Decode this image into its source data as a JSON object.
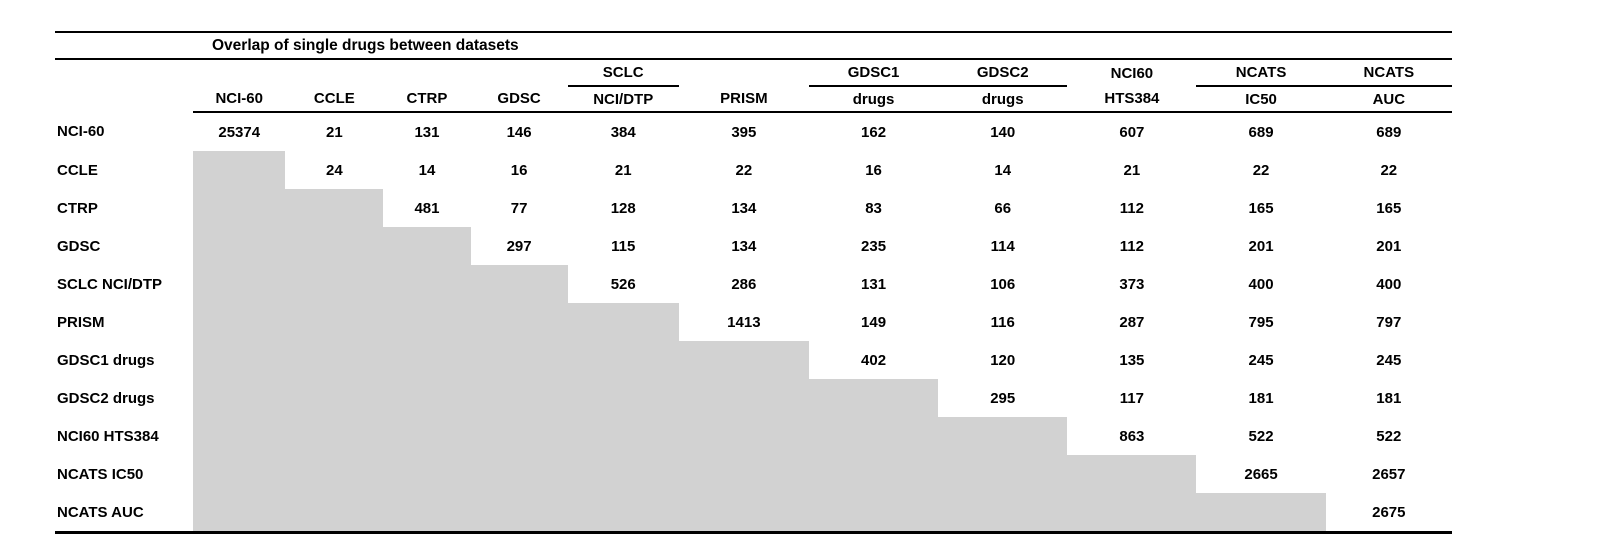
{
  "title": "Overlap of single drugs between datasets",
  "colors": {
    "shaded_cell": "#d2d2d2",
    "rule": "#000000",
    "background": "#ffffff"
  },
  "columns": [
    {
      "header_top": "",
      "header_bottom": "NCI-60",
      "underline": false
    },
    {
      "header_top": "",
      "header_bottom": "CCLE",
      "underline": false
    },
    {
      "header_top": "",
      "header_bottom": "CTRP",
      "underline": false
    },
    {
      "header_top": "",
      "header_bottom": "GDSC",
      "underline": false
    },
    {
      "header_top": "SCLC",
      "header_bottom": "NCI/DTP",
      "underline": true
    },
    {
      "header_top": "",
      "header_bottom": "PRISM",
      "underline": false
    },
    {
      "header_top": "GDSC1",
      "header_bottom": "drugs",
      "underline": true
    },
    {
      "header_top": "GDSC2",
      "header_bottom": "drugs",
      "underline": true
    },
    {
      "header_top": "NCI60",
      "header_bottom": "HTS384",
      "underline": false
    },
    {
      "header_top": "NCATS",
      "header_bottom": "IC50",
      "underline": true
    },
    {
      "header_top": "NCATS",
      "header_bottom": "AUC",
      "underline": true
    }
  ],
  "rows": [
    {
      "label": "NCI-60",
      "cells": [
        "25374",
        "21",
        "131",
        "146",
        "384",
        "395",
        "162",
        "140",
        "607",
        "689",
        "689"
      ]
    },
    {
      "label": "CCLE",
      "cells": [
        null,
        "24",
        "14",
        "16",
        "21",
        "22",
        "16",
        "14",
        "21",
        "22",
        "22"
      ]
    },
    {
      "label": "CTRP",
      "cells": [
        null,
        null,
        "481",
        "77",
        "128",
        "134",
        "83",
        "66",
        "112",
        "165",
        "165"
      ]
    },
    {
      "label": "GDSC",
      "cells": [
        null,
        null,
        null,
        "297",
        "115",
        "134",
        "235",
        "114",
        "112",
        "201",
        "201"
      ]
    },
    {
      "label": "SCLC NCI/DTP",
      "cells": [
        null,
        null,
        null,
        null,
        "526",
        "286",
        "131",
        "106",
        "373",
        "400",
        "400"
      ]
    },
    {
      "label": "PRISM",
      "cells": [
        null,
        null,
        null,
        null,
        null,
        "1413",
        "149",
        "116",
        "287",
        "795",
        "797"
      ]
    },
    {
      "label": "GDSC1 drugs",
      "cells": [
        null,
        null,
        null,
        null,
        null,
        null,
        "402",
        "120",
        "135",
        "245",
        "245"
      ]
    },
    {
      "label": "GDSC2 drugs",
      "cells": [
        null,
        null,
        null,
        null,
        null,
        null,
        null,
        "295",
        "117",
        "181",
        "181"
      ]
    },
    {
      "label": "NCI60 HTS384",
      "cells": [
        null,
        null,
        null,
        null,
        null,
        null,
        null,
        null,
        "863",
        "522",
        "522"
      ]
    },
    {
      "label": "NCATS IC50",
      "cells": [
        null,
        null,
        null,
        null,
        null,
        null,
        null,
        null,
        null,
        "2665",
        "2657"
      ]
    },
    {
      "label": "NCATS AUC",
      "cells": [
        null,
        null,
        null,
        null,
        null,
        null,
        null,
        null,
        null,
        null,
        "2675"
      ]
    }
  ]
}
